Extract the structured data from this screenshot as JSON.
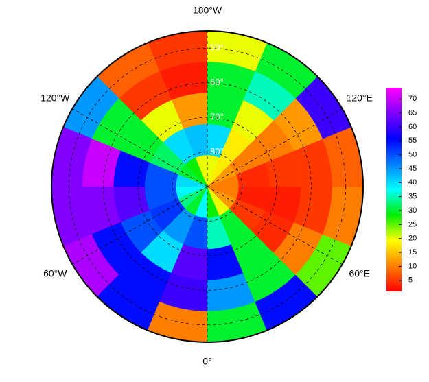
{
  "chart_data": {
    "type": "polar-heatmap",
    "lat_lim": [
      45,
      90
    ],
    "lat_bins": [
      45,
      54,
      63,
      72,
      81,
      90
    ],
    "lon_bins": [
      -180,
      -157.5,
      -135,
      -112.5,
      -90,
      -67.5,
      -45,
      -22.5,
      0,
      22.5,
      45,
      67.5,
      90,
      112.5,
      135,
      157.5,
      180
    ],
    "values": [
      [
        5,
        8,
        45,
        65,
        65,
        68,
        55,
        10,
        30,
        55,
        25,
        10,
        8,
        60,
        30,
        20
      ],
      [
        3,
        5,
        30,
        70,
        65,
        55,
        55,
        60,
        45,
        30,
        10,
        5,
        5,
        12,
        35,
        30
      ],
      [
        12,
        20,
        30,
        55,
        62,
        50,
        40,
        62,
        55,
        30,
        4,
        3,
        5,
        10,
        20,
        30
      ],
      [
        42,
        40,
        32,
        50,
        50,
        52,
        45,
        50,
        35,
        30,
        5,
        3,
        4,
        10,
        18,
        40
      ],
      [
        20,
        28,
        30,
        40,
        38,
        33,
        30,
        38,
        28,
        20,
        12,
        10,
        10,
        12,
        18,
        20
      ]
    ],
    "lon_ticks": [
      {
        "value": -180,
        "label": "180°W"
      },
      {
        "value": -120,
        "label": "120°W"
      },
      {
        "value": -60,
        "label": "60°W"
      },
      {
        "value": 0,
        "label": "0°"
      },
      {
        "value": 60,
        "label": "60°E"
      },
      {
        "value": 120,
        "label": "120°E"
      }
    ],
    "lat_ticks": [
      {
        "value": 50,
        "label": "50°"
      },
      {
        "value": 60,
        "label": "60°"
      },
      {
        "value": 70,
        "label": "70°"
      },
      {
        "value": 80,
        "label": "80°"
      }
    ],
    "clim": [
      1,
      74
    ],
    "cticks": [
      5,
      10,
      15,
      20,
      25,
      30,
      35,
      40,
      45,
      50,
      55,
      60,
      65,
      70
    ],
    "colormap": [
      "#ff0000",
      "#ff7f00",
      "#ffff00",
      "#00ee00",
      "#00ffff",
      "#0080ff",
      "#0000ff",
      "#8000ff",
      "#ff00ff"
    ]
  }
}
